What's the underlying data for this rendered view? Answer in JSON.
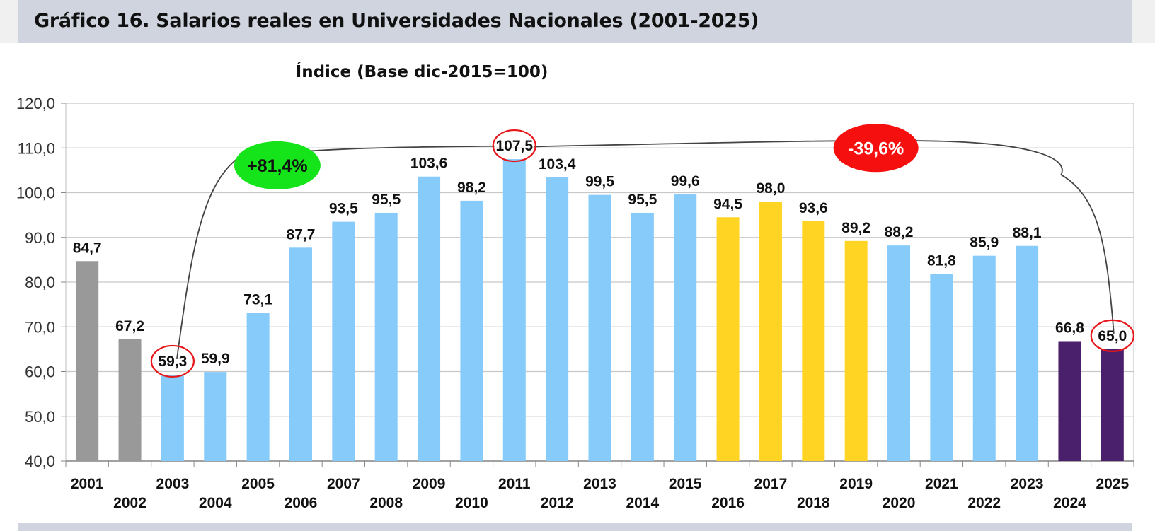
{
  "header": {
    "title": "Gráfico 16. Salarios reales en Universidades Nacionales (2001-2025)"
  },
  "colors": {
    "gray": "#999999",
    "light_blue": "#87CBFA",
    "yellow": "#FFD423",
    "purple": "#4A1F6B",
    "grid": "#c8c8c8",
    "highlight_circle": "#e8161b",
    "badge_up": "#16e41a",
    "badge_down": "#f50f0f"
  },
  "chart_data": {
    "type": "bar",
    "title": "",
    "subtitle": "Índice (Base dic-2015=100)",
    "xlabel": "",
    "ylabel": "",
    "ylim": [
      40,
      120
    ],
    "yticks": [
      "40,0",
      "50,0",
      "60,0",
      "70,0",
      "80,0",
      "90,0",
      "100,0",
      "110,0",
      "120,0"
    ],
    "grid": true,
    "categories": [
      "2001",
      "2002",
      "2003",
      "2004",
      "2005",
      "2006",
      "2007",
      "2008",
      "2009",
      "2010",
      "2011",
      "2012",
      "2013",
      "2014",
      "2015",
      "2016",
      "2017",
      "2018",
      "2019",
      "2020",
      "2021",
      "2022",
      "2023",
      "2024",
      "2025"
    ],
    "values": [
      84.7,
      67.2,
      59.3,
      59.9,
      73.1,
      87.7,
      93.5,
      95.5,
      103.6,
      98.2,
      107.5,
      103.4,
      99.5,
      95.5,
      99.6,
      94.5,
      98.0,
      93.6,
      89.2,
      88.2,
      81.8,
      85.9,
      88.1,
      66.8,
      65.0
    ],
    "value_labels": [
      "84,7",
      "67,2",
      "59,3",
      "59,9",
      "73,1",
      "87,7",
      "93,5",
      "95,5",
      "103,6",
      "98,2",
      "107,5",
      "103,4",
      "99,5",
      "95,5",
      "99,6",
      "94,5",
      "98,0",
      "93,6",
      "89,2",
      "88,2",
      "81,8",
      "85,9",
      "88,1",
      "66,8",
      "65,0"
    ],
    "bar_colors": [
      "gray",
      "gray",
      "light_blue",
      "light_blue",
      "light_blue",
      "light_blue",
      "light_blue",
      "light_blue",
      "light_blue",
      "light_blue",
      "light_blue",
      "light_blue",
      "light_blue",
      "light_blue",
      "light_blue",
      "yellow",
      "yellow",
      "yellow",
      "yellow",
      "light_blue",
      "light_blue",
      "light_blue",
      "light_blue",
      "purple",
      "purple"
    ],
    "highlighted": [
      "2003",
      "2011",
      "2025"
    ],
    "annotations": [
      {
        "label": "+81,4%",
        "from": "2003",
        "to": "2011",
        "color": "badge_up"
      },
      {
        "label": "-39,6%",
        "from": "2011",
        "to": "2025",
        "color": "badge_down"
      }
    ]
  }
}
